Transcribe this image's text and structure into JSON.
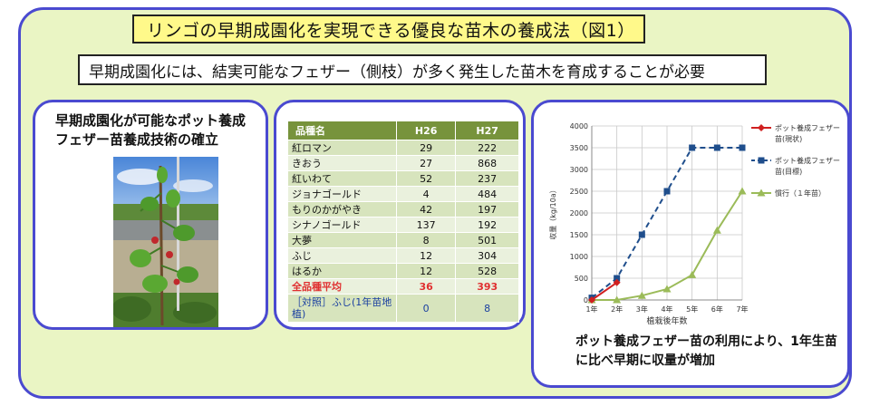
{
  "title": "リンゴの早期成園化を実現できる優良な苗木の養成法（図1）",
  "subtitle": "早期成園化には、結実可能なフェザー（側枝）が多く発生した苗木を育成することが必要",
  "left_panel": {
    "heading": "早期成園化が可能なポット養成フェザー苗養成技術の確立"
  },
  "table": {
    "headers": [
      "品種名",
      "H26",
      "H27"
    ],
    "rows": [
      {
        "name": "紅ロマン",
        "h26": "29",
        "h27": "222"
      },
      {
        "name": "きおう",
        "h26": "27",
        "h27": "868"
      },
      {
        "name": "紅いわて",
        "h26": "52",
        "h27": "237"
      },
      {
        "name": "ジョナゴールド",
        "h26": "4",
        "h27": "484"
      },
      {
        "name": "もりのかがやき",
        "h26": "42",
        "h27": "197"
      },
      {
        "name": "シナノゴールド",
        "h26": "137",
        "h27": "192"
      },
      {
        "name": "大夢",
        "h26": "8",
        "h27": "501"
      },
      {
        "name": "ふじ",
        "h26": "12",
        "h27": "304"
      },
      {
        "name": "はるか",
        "h26": "12",
        "h27": "528"
      }
    ],
    "average": {
      "name": "全品種平均",
      "h26": "36",
      "h27": "393"
    },
    "control": {
      "name": "［対照］ふじ(1年苗地植)",
      "h26": "0",
      "h27": "8"
    }
  },
  "chart_data": {
    "type": "line",
    "categories": [
      "1年",
      "2年",
      "3年",
      "4年",
      "5年",
      "6年",
      "7年"
    ],
    "xlabel": "植栽後年数",
    "ylabel": "収量（kg/10a）",
    "ylim": [
      0,
      4000
    ],
    "yticks": [
      "0",
      "500",
      "1000",
      "1500",
      "2000",
      "2500",
      "3000",
      "3500",
      "4000"
    ],
    "grid": true,
    "legend_position": "right",
    "series": [
      {
        "name": "ポット養成フェザー苗(現状)",
        "values": [
          0,
          400,
          null,
          null,
          null,
          null,
          null
        ],
        "color": "#d02020",
        "style": "solid",
        "marker": "diamond"
      },
      {
        "name": "ポット養成フェザー苗(目標)",
        "values": [
          50,
          500,
          1500,
          2500,
          3500,
          3500,
          3500
        ],
        "color": "#1f4e8c",
        "style": "dashed",
        "marker": "square"
      },
      {
        "name": "慣行（１年苗）",
        "values": [
          0,
          0,
          100,
          250,
          575,
          1600,
          2500
        ],
        "color": "#9bbb59",
        "style": "solid",
        "marker": "triangle"
      }
    ]
  },
  "right_panel": {
    "caption": "ポット養成フェザー苗の利用により、1年生苗に比べ早期に収量が増加"
  }
}
